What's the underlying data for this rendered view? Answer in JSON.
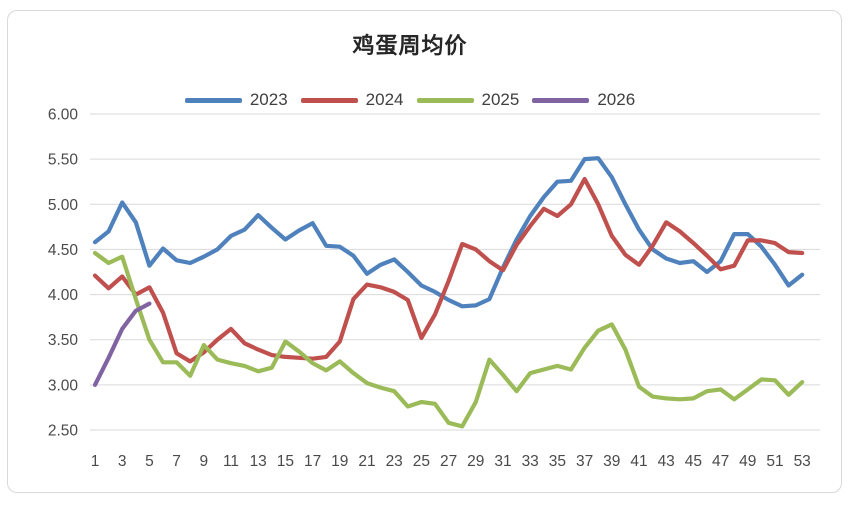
{
  "chart_data": {
    "type": "line",
    "title": "鸡蛋周均价",
    "xlabel": "",
    "ylabel": "",
    "ylim": [
      2.5,
      6.0
    ],
    "y_tick_step": 0.5,
    "grid": true,
    "legend_position": "top",
    "x": [
      1,
      2,
      3,
      4,
      5,
      6,
      7,
      8,
      9,
      10,
      11,
      12,
      13,
      14,
      15,
      16,
      17,
      18,
      19,
      20,
      21,
      22,
      23,
      24,
      25,
      26,
      27,
      28,
      29,
      30,
      31,
      32,
      33,
      34,
      35,
      36,
      37,
      38,
      39,
      40,
      41,
      42,
      43,
      44,
      45,
      46,
      47,
      48,
      49,
      50,
      51,
      52,
      53
    ],
    "x_tick_labels": [
      "1",
      "3",
      "5",
      "7",
      "9",
      "11",
      "13",
      "15",
      "17",
      "19",
      "21",
      "23",
      "25",
      "27",
      "29",
      "31",
      "33",
      "35",
      "37",
      "39",
      "41",
      "43",
      "45",
      "47",
      "49",
      "51",
      "53"
    ],
    "y_tick_labels": [
      "6.00",
      "5.50",
      "5.00",
      "4.50",
      "4.00",
      "3.50",
      "3.00",
      "2.50"
    ],
    "series": [
      {
        "name": "2023",
        "color": "#4F81BD",
        "values": [
          4.58,
          4.7,
          5.02,
          4.8,
          4.32,
          4.51,
          4.38,
          4.35,
          4.42,
          4.5,
          4.65,
          4.72,
          4.88,
          4.74,
          4.61,
          4.71,
          4.79,
          4.54,
          4.53,
          4.43,
          4.23,
          4.33,
          4.39,
          4.25,
          4.1,
          4.03,
          3.94,
          3.87,
          3.88,
          3.95,
          4.3,
          4.61,
          4.87,
          5.08,
          5.25,
          5.26,
          5.5,
          5.51,
          5.3,
          5.0,
          4.72,
          4.5,
          4.4,
          4.35,
          4.37,
          4.25,
          4.37,
          4.67,
          4.67,
          4.53,
          4.33,
          4.1,
          4.22
        ]
      },
      {
        "name": "2024",
        "color": "#C0504D",
        "values": [
          4.21,
          4.07,
          4.2,
          4.0,
          4.08,
          3.8,
          3.35,
          3.26,
          3.36,
          3.5,
          3.62,
          3.46,
          3.39,
          3.33,
          3.31,
          3.3,
          3.29,
          3.31,
          3.48,
          3.95,
          4.11,
          4.08,
          4.03,
          3.94,
          3.52,
          3.78,
          4.15,
          4.56,
          4.5,
          4.37,
          4.27,
          4.55,
          4.76,
          4.95,
          4.87,
          5.0,
          5.28,
          5.0,
          4.65,
          4.44,
          4.33,
          4.54,
          4.8,
          4.7,
          4.57,
          4.43,
          4.28,
          4.32,
          4.6,
          4.6,
          4.57,
          4.47,
          4.46
        ]
      },
      {
        "name": "2025",
        "color": "#9BBB59",
        "values": [
          4.46,
          4.35,
          4.42,
          3.95,
          3.5,
          3.25,
          3.25,
          3.1,
          3.44,
          3.28,
          3.24,
          3.21,
          3.15,
          3.19,
          3.48,
          3.37,
          3.24,
          3.16,
          3.26,
          3.13,
          3.02,
          2.97,
          2.93,
          2.76,
          2.81,
          2.79,
          2.58,
          2.54,
          2.81,
          3.28,
          3.11,
          2.93,
          3.13,
          3.17,
          3.21,
          3.17,
          3.41,
          3.6,
          3.67,
          3.39,
          2.98,
          2.87,
          2.85,
          2.84,
          2.85,
          2.93,
          2.95,
          2.84,
          2.95,
          3.06,
          3.05,
          2.89,
          3.03
        ]
      },
      {
        "name": "2026",
        "color": "#8064A2",
        "values": [
          3.0,
          3.3,
          3.62,
          3.82,
          3.9
        ]
      }
    ]
  },
  "styles": {
    "grid_color": "#D9D9D9",
    "border_color": "#D9D9D9",
    "axis_label_color": "#4a4a4a",
    "title_color": "#262626",
    "background": "#FFFFFF"
  }
}
